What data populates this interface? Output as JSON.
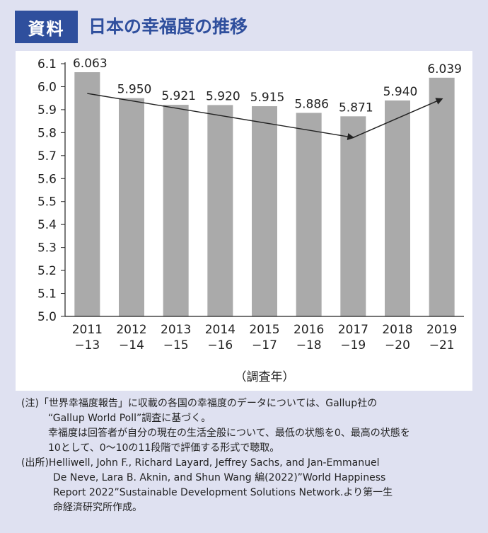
{
  "header": {
    "badge": "資料",
    "title": "日本の幸福度の推移"
  },
  "chart_data": {
    "type": "bar",
    "categories": [
      [
        "2011",
        "−13"
      ],
      [
        "2012",
        "−14"
      ],
      [
        "2013",
        "−15"
      ],
      [
        "2014",
        "−16"
      ],
      [
        "2015",
        "−17"
      ],
      [
        "2016",
        "−18"
      ],
      [
        "2017",
        "−19"
      ],
      [
        "2018",
        "−20"
      ],
      [
        "2019",
        "−21"
      ]
    ],
    "values": [
      6.063,
      5.95,
      5.921,
      5.92,
      5.915,
      5.886,
      5.871,
      5.94,
      6.039
    ],
    "value_labels": [
      "6.063",
      "5.950",
      "5.921",
      "5.920",
      "5.915",
      "5.886",
      "5.871",
      "5.940",
      "6.039"
    ],
    "ylim": [
      5.0,
      6.1
    ],
    "yticks": [
      "5.0",
      "5.1",
      "5.2",
      "5.3",
      "5.4",
      "5.5",
      "5.6",
      "5.7",
      "5.8",
      "5.9",
      "6.0",
      "6.1"
    ],
    "xlabel": "（調査年）",
    "trend_arrows": [
      {
        "from": 2011,
        "to": 2017
      },
      {
        "from": 2017,
        "to": 2019
      }
    ],
    "colors": {
      "bar": "#aaaaaa",
      "axis": "#222222",
      "text": "#222222"
    }
  },
  "notes": {
    "line1": "(注)「世界幸福度報告」に収載の各国の幸福度のデータについては、Gallup社の",
    "line2": "“Gallup World Poll”調査に基づく。",
    "line3": "幸福度は回答者が自分の現在の生活全般について、最低の状態を0、最高の状態を",
    "line4": "10として、0〜10の11段階で評価する形式で聴取。",
    "line5": "(出所)Helliwell, John F., Richard Layard, Jeffrey Sachs, and Jan-Emmanuel",
    "line6": "De Neve, Lara B. Aknin, and Shun Wang 編(2022)”World Happiness",
    "line7": "Report 2022”Sustainable Development Solutions Network.より第一生",
    "line8": "命経済研究所作成。"
  }
}
